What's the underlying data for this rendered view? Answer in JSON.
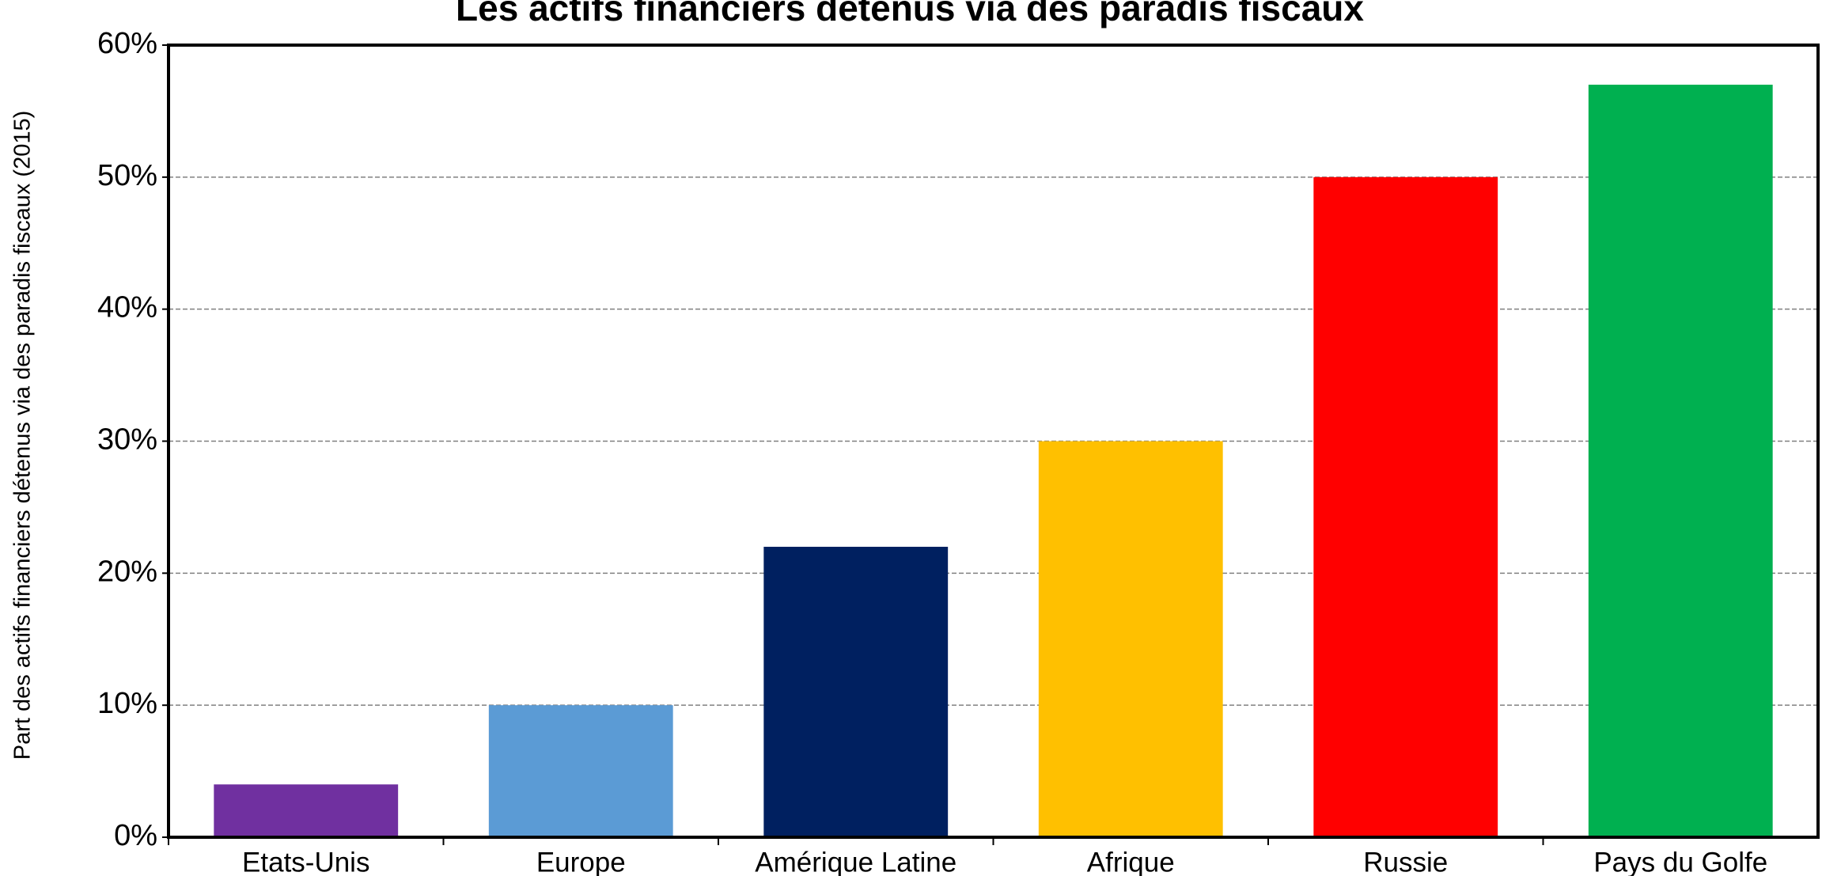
{
  "chart_data": {
    "type": "bar",
    "title": "Les actifs financiers détenus via des paradis fiscaux",
    "y_label": "Part des actifs financiers détenus via des paradis fiscaux (2015)",
    "categories": [
      "Etats-Unis",
      "Europe",
      "Amérique Latine",
      "Afrique",
      "Russie",
      "Pays du Golfe"
    ],
    "values": [
      4,
      10,
      22,
      30,
      50,
      57
    ],
    "colors": [
      "#7030a0",
      "#5b9bd5",
      "#002060",
      "#ffc000",
      "#ff0000",
      "#00b050"
    ],
    "ylim": [
      0,
      60
    ],
    "yticks": [
      {
        "value": 0,
        "label": "0%"
      },
      {
        "value": 10,
        "label": "10%"
      },
      {
        "value": 20,
        "label": "20%"
      },
      {
        "value": 30,
        "label": "30%"
      },
      {
        "value": 40,
        "label": "40%"
      },
      {
        "value": 50,
        "label": "50%"
      },
      {
        "value": 60,
        "label": "60%"
      }
    ],
    "grid": true
  }
}
